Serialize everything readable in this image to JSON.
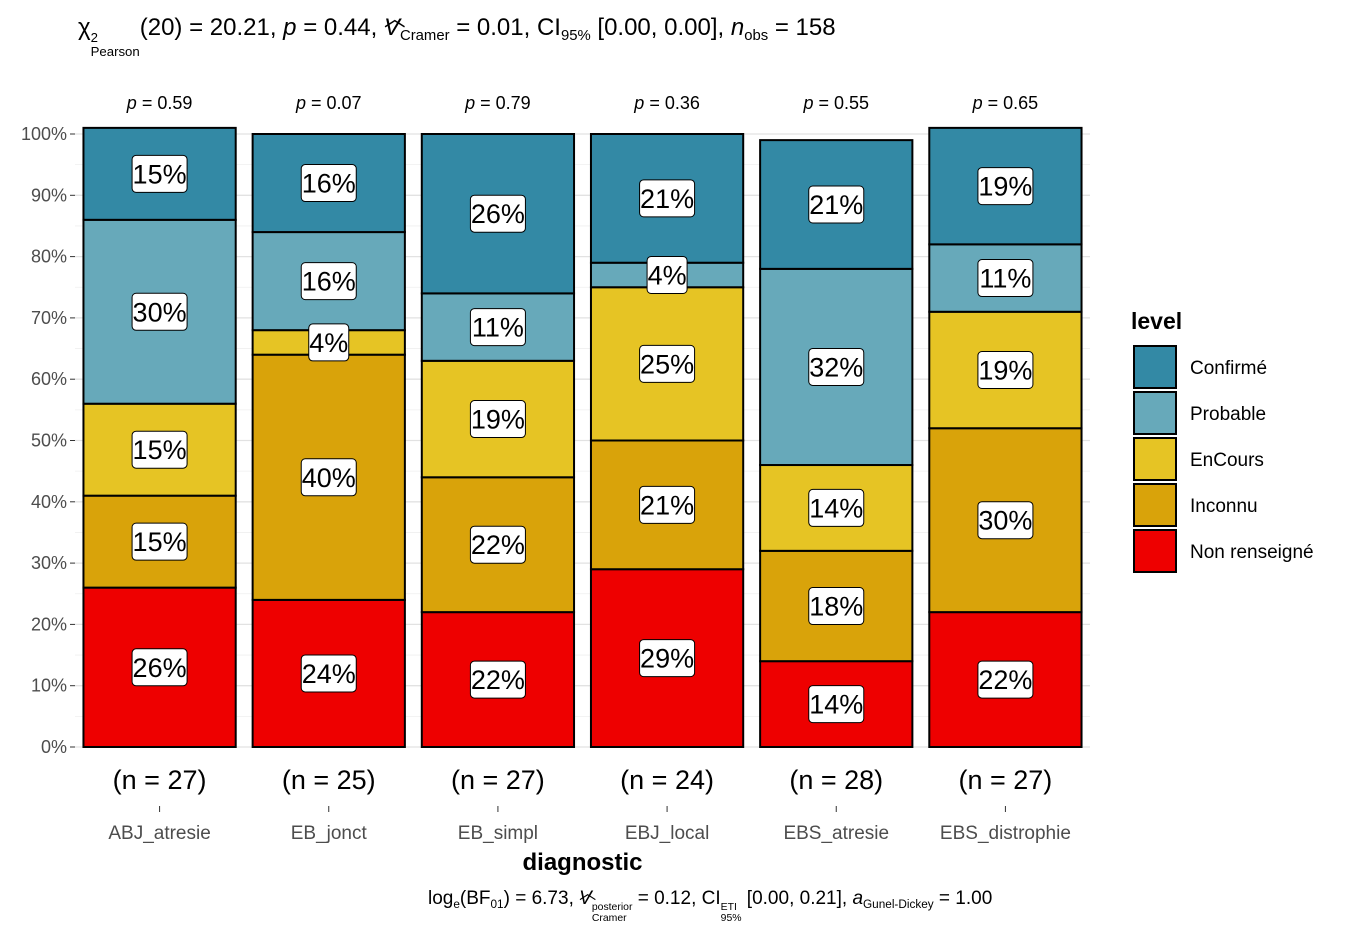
{
  "subtitle": {
    "chi": "χ",
    "chi_sup": "2",
    "chi_sub": "Pearson",
    "df": "(20) = 20.21, ",
    "p_label": "p",
    "p_value": " = 0.44, ",
    "v_label": "V",
    "v_sub": "Cramer",
    "v_value": " = 0.01, CI",
    "ci_sub": "95%",
    "ci_value": " [0.00, 0.00], ",
    "n_label": "n",
    "n_sub": "obs",
    "n_value": " = 158"
  },
  "caption": {
    "log": "log",
    "log_sub": "e",
    "bf": "(BF",
    "bf_sub": "01",
    "bf_value": ") = 6.73, ",
    "v_label": "V",
    "v_sup": "posterior",
    "v_sub": "Cramer",
    "v_value": " = 0.12, CI",
    "ci_sup": "ETI",
    "ci_sub": "95%",
    "ci_value": " [0.00, 0.21], ",
    "a_label": "a",
    "a_sub": "Gunel-Dickey",
    "a_value": " = 1.00"
  },
  "chart_data": {
    "type": "bar",
    "stacked": true,
    "percent_stacked": true,
    "xlabel": "diagnostic",
    "ylabel": "",
    "ylim": [
      0,
      100
    ],
    "y_ticks": [
      "0%",
      "10%",
      "20%",
      "30%",
      "40%",
      "50%",
      "60%",
      "70%",
      "80%",
      "90%",
      "100%"
    ],
    "grid": true,
    "categories": [
      "ABJ_atresie",
      "EB_jonct",
      "EB_simpl",
      "EBJ_local",
      "EBS_atresie",
      "EBS_distrophie"
    ],
    "counts": [
      "(n = 27)",
      "(n = 25)",
      "(n = 27)",
      "(n = 24)",
      "(n = 28)",
      "(n = 27)"
    ],
    "p_values": [
      "0.59",
      "0.07",
      "0.79",
      "0.36",
      "0.55",
      "0.65"
    ],
    "p_prefix": "p",
    "legend": {
      "title": "level",
      "position": "right"
    },
    "series": [
      {
        "name": "Non renseigné",
        "color": "#EE0000",
        "values": [
          26,
          24,
          22,
          29,
          14,
          22
        ],
        "labels": [
          "26%",
          "24%",
          "22%",
          "29%",
          "14%",
          "22%"
        ]
      },
      {
        "name": "Inconnu",
        "color": "#D9A30A",
        "values": [
          15,
          40,
          22,
          21,
          18,
          30
        ],
        "labels": [
          "15%",
          "40%",
          "22%",
          "21%",
          "18%",
          "30%"
        ]
      },
      {
        "name": "EnCours",
        "color": "#E6C424",
        "values": [
          15,
          4,
          19,
          25,
          14,
          19
        ],
        "labels": [
          "15%",
          "4%",
          "19%",
          "25%",
          "14%",
          "19%"
        ]
      },
      {
        "name": "Probable",
        "color": "#67A9BA",
        "values": [
          30,
          16,
          11,
          4,
          32,
          11
        ],
        "labels": [
          "30%",
          "16%",
          "11%",
          "4%",
          "32%",
          "11%"
        ]
      },
      {
        "name": "Confirmé",
        "color": "#3389A5",
        "values": [
          15,
          16,
          26,
          21,
          21,
          19
        ],
        "labels": [
          "15%",
          "16%",
          "26%",
          "21%",
          "21%",
          "19%"
        ]
      }
    ]
  }
}
